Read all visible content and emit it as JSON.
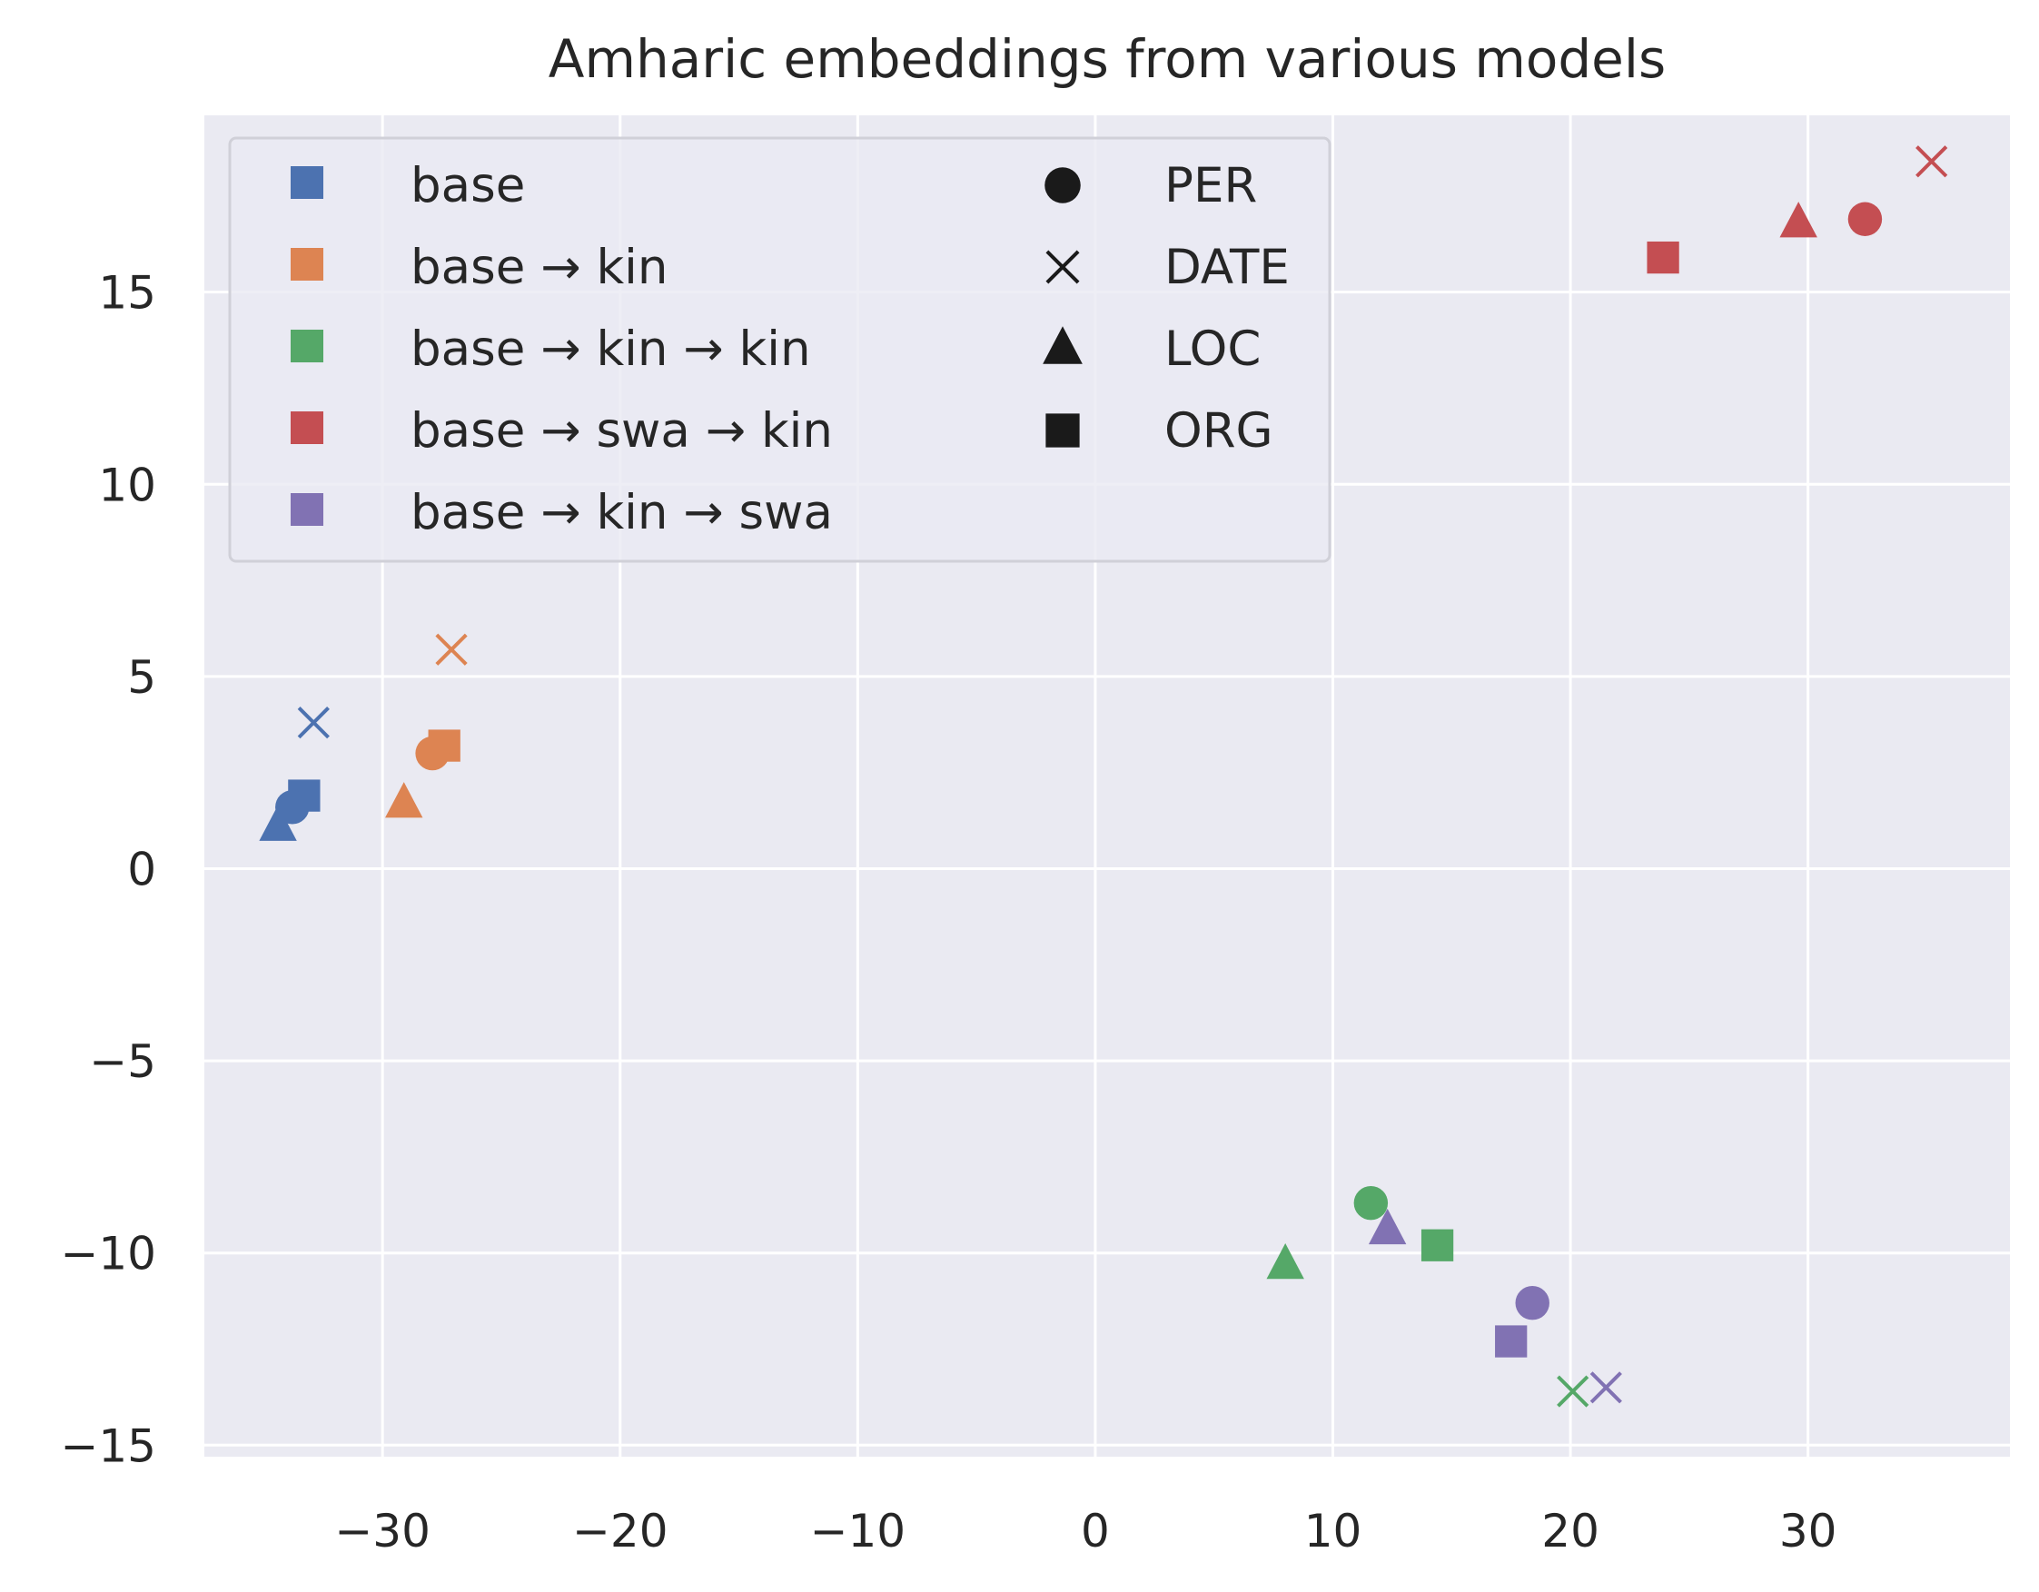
{
  "chart_data": {
    "type": "scatter",
    "title": "Amharic embeddings from various models",
    "xlabel": "",
    "ylabel": "",
    "xlim": [
      -37.5,
      38.5
    ],
    "ylim": [
      -15.3,
      19.6
    ],
    "xticks": [
      -30,
      -20,
      -10,
      0,
      10,
      20,
      30
    ],
    "yticks": [
      -15,
      -10,
      -5,
      0,
      5,
      10,
      15
    ],
    "xtick_labels": [
      "−30",
      "−20",
      "−10",
      "0",
      "10",
      "20",
      "30"
    ],
    "ytick_labels": [
      "−15",
      "−10",
      "−5",
      "0",
      "5",
      "10",
      "15"
    ],
    "grid": true,
    "legend_position": "upper-left",
    "background_color": "#eaeaf2",
    "grid_color": "#ffffff",
    "markers": {
      "PER": "circle",
      "DATE": "x",
      "LOC": "triangle",
      "ORG": "square"
    },
    "marker_legend": [
      {
        "label": "PER",
        "marker": "circle"
      },
      {
        "label": "DATE",
        "marker": "x"
      },
      {
        "label": "LOC",
        "marker": "triangle"
      },
      {
        "label": "ORG",
        "marker": "square"
      }
    ],
    "series": [
      {
        "name": "base",
        "color": "#4c72b0",
        "points": {
          "PER": [
            -33.8,
            1.6
          ],
          "DATE": [
            -32.9,
            3.8
          ],
          "LOC": [
            -34.4,
            1.1
          ],
          "ORG": [
            -33.3,
            1.9
          ]
        }
      },
      {
        "name": "base → kin",
        "color": "#dd8452",
        "points": {
          "PER": [
            -27.9,
            3.0
          ],
          "DATE": [
            -27.1,
            5.7
          ],
          "LOC": [
            -29.1,
            1.7
          ],
          "ORG": [
            -27.4,
            3.2
          ]
        }
      },
      {
        "name": "base → kin → kin",
        "color": "#55a868",
        "points": {
          "PER": [
            11.6,
            -8.7
          ],
          "DATE": [
            20.1,
            -13.6
          ],
          "LOC": [
            8.0,
            -10.3
          ],
          "ORG": [
            14.4,
            -9.8
          ]
        }
      },
      {
        "name": "base → swa → kin",
        "color": "#c44e52",
        "points": {
          "PER": [
            32.4,
            16.9
          ],
          "DATE": [
            35.2,
            18.4
          ],
          "LOC": [
            29.6,
            16.8
          ],
          "ORG": [
            23.9,
            15.9
          ]
        }
      },
      {
        "name": "base → kin → swa",
        "color": "#8172b3",
        "points": {
          "PER": [
            18.4,
            -11.3
          ],
          "DATE": [
            21.5,
            -13.5
          ],
          "LOC": [
            12.3,
            -9.4
          ],
          "ORG": [
            17.5,
            -12.3
          ]
        }
      }
    ]
  }
}
